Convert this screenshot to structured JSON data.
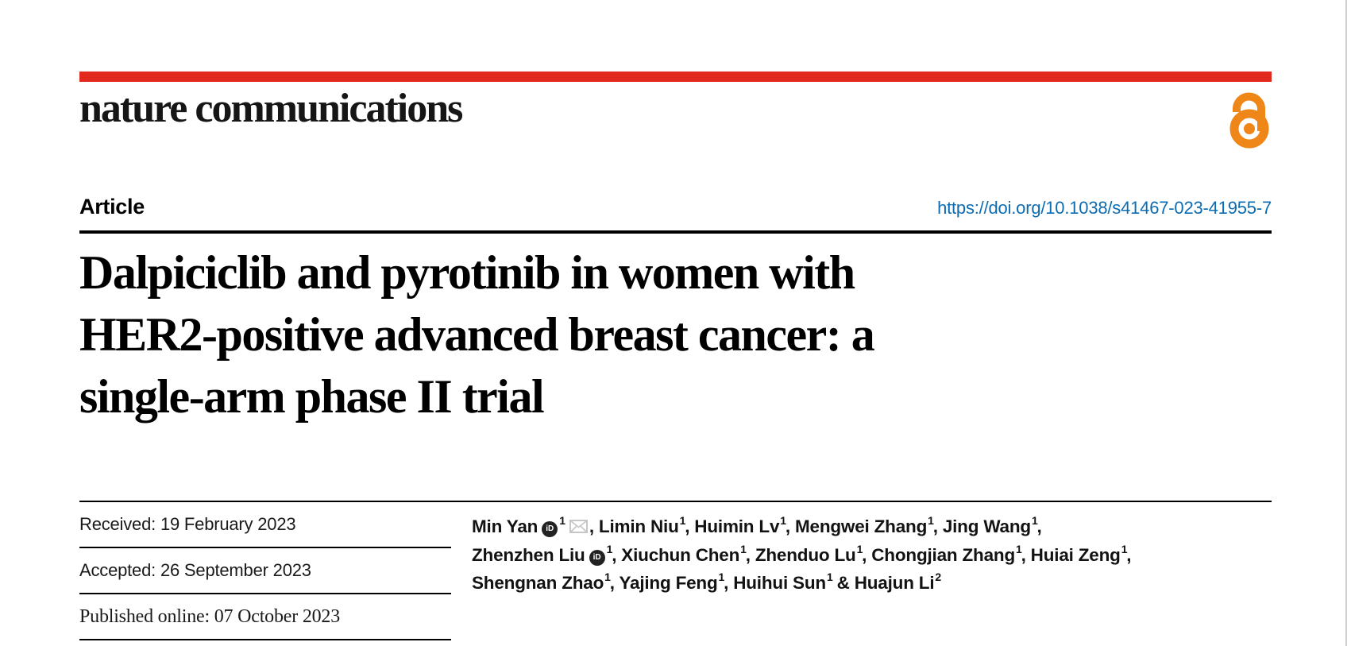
{
  "masthead": {
    "journal_name": "nature communications",
    "brand_red": "#e2291d",
    "open_access_icon": "open-access-padlock-icon",
    "open_access_color": "#ef8618"
  },
  "article_bar": {
    "label": "Article",
    "doi": "https://doi.org/10.1038/s41467-023-41955-7",
    "doi_color": "#0d6cb1"
  },
  "title_lines": [
    "Dalpiciclib and pyrotinib in women with",
    "HER2-positive advanced breast cancer: a",
    "single-arm phase II trial"
  ],
  "dates": [
    {
      "text": "Received: 19 February 2023",
      "style": "sans"
    },
    {
      "text": "Accepted: 26 September 2023",
      "style": "sans"
    },
    {
      "text": "Published online: 07 October 2023",
      "style": "serif"
    }
  ],
  "authors": {
    "lines": [
      [
        {
          "t": "Min Yan"
        },
        {
          "icon": "orcid"
        },
        {
          "sup": "1"
        },
        {
          "icon": "envelope"
        },
        {
          "t": ", Limin Niu"
        },
        {
          "sup": "1"
        },
        {
          "t": ", Huimin Lv"
        },
        {
          "sup": "1"
        },
        {
          "t": ", Mengwei Zhang"
        },
        {
          "sup": "1"
        },
        {
          "t": ", Jing Wang"
        },
        {
          "sup": "1"
        },
        {
          "t": ","
        }
      ],
      [
        {
          "t": "Zhenzhen Liu"
        },
        {
          "icon": "orcid"
        },
        {
          "sup": "1"
        },
        {
          "t": ", Xiuchun Chen"
        },
        {
          "sup": "1"
        },
        {
          "t": ", Zhenduo Lu"
        },
        {
          "sup": "1"
        },
        {
          "t": ", Chongjian Zhang"
        },
        {
          "sup": "1"
        },
        {
          "t": ", Huiai Zeng"
        },
        {
          "sup": "1"
        },
        {
          "t": ","
        }
      ],
      [
        {
          "t": "Shengnan Zhao"
        },
        {
          "sup": "1"
        },
        {
          "t": ", Yajing Feng"
        },
        {
          "sup": "1"
        },
        {
          "t": ", Huihui Sun"
        },
        {
          "sup": "1"
        },
        {
          "t": " & Huajun Li"
        },
        {
          "sup": "2"
        }
      ]
    ],
    "orcid_icon_label": "iD"
  }
}
